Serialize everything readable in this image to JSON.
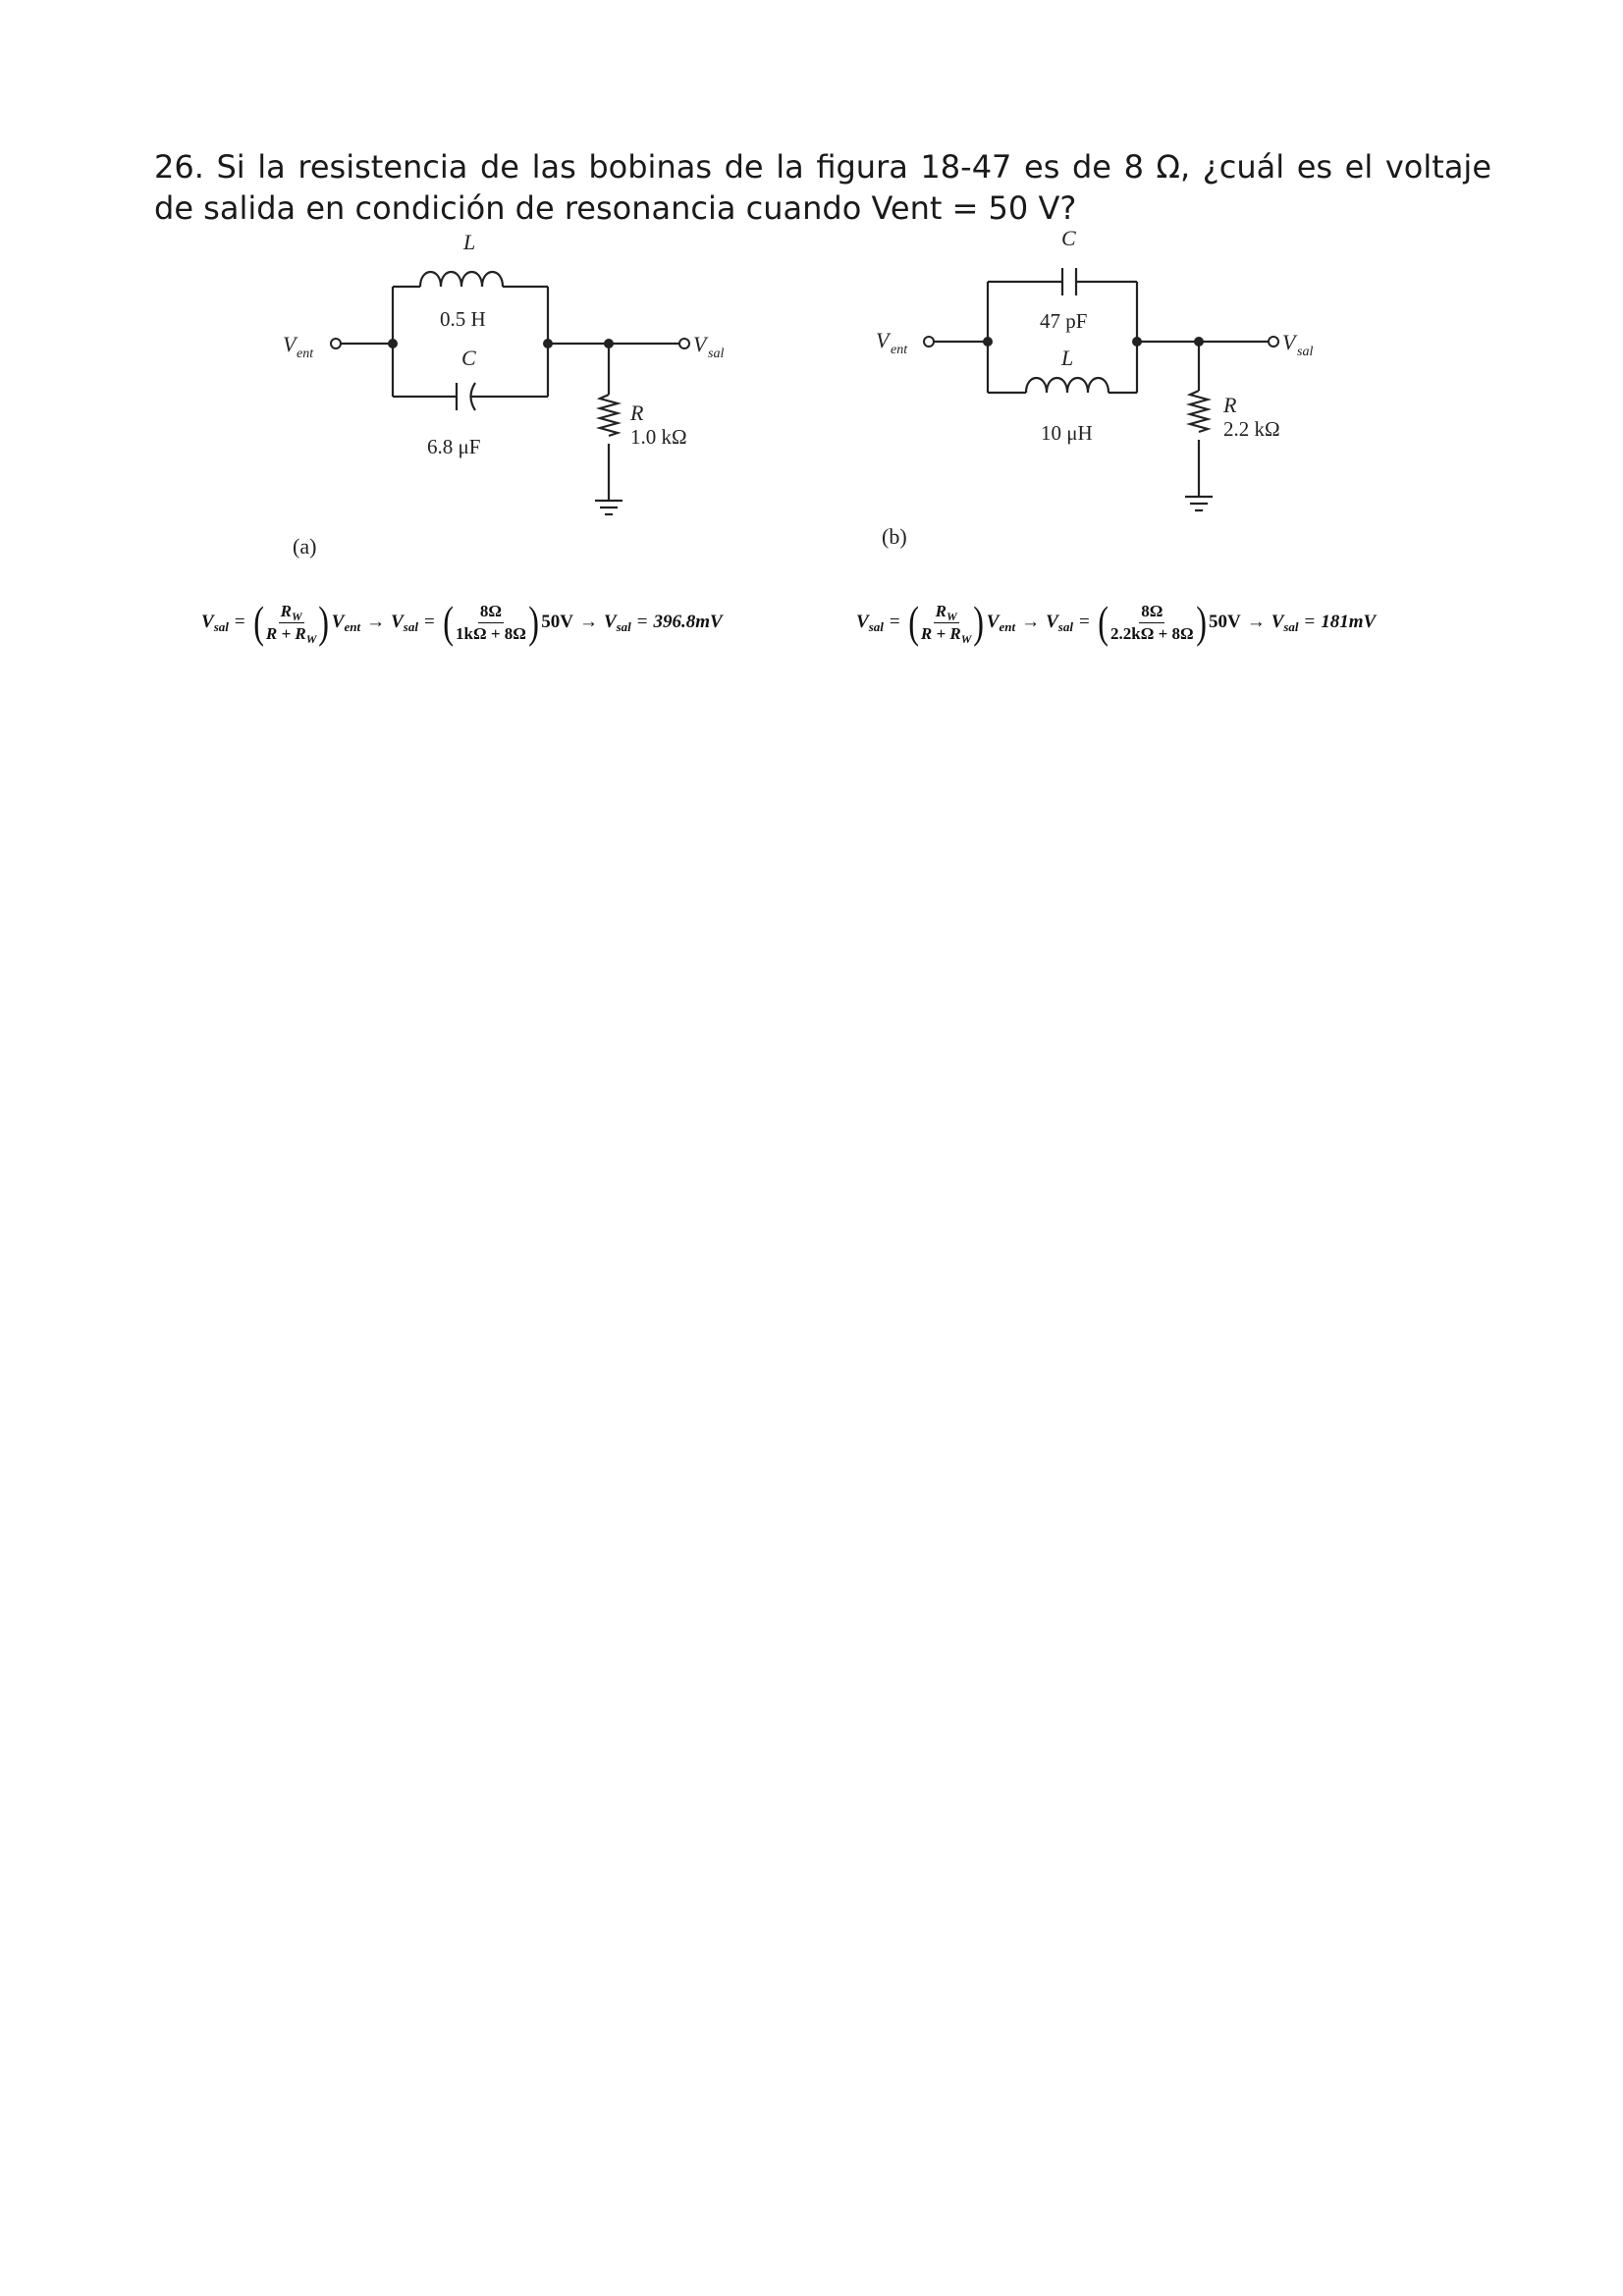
{
  "question": {
    "text": "26. Si la resistencia de las bobinas de la figura 18-47 es de 8 Ω, ¿cuál es el voltaje de salida en condición de resonancia cuando Vent = 50 V?"
  },
  "figure_a": {
    "input_label": "V",
    "input_sub": "ent",
    "output_label": "V",
    "output_sub": "sal",
    "inductor_name": "L",
    "inductor_value": "0.5 H",
    "capacitor_name": "C",
    "capacitor_value": "6.8 μF",
    "resistor_name": "R",
    "resistor_value": "1.0 kΩ",
    "caption": "(a)"
  },
  "figure_b": {
    "input_label": "V",
    "input_sub": "ent",
    "output_label": "V",
    "output_sub": "sal",
    "capacitor_name": "C",
    "capacitor_value": "47 pF",
    "inductor_name": "L",
    "inductor_value": "10 μH",
    "resistor_name": "R",
    "resistor_value": "2.2 kΩ",
    "caption": "(b)"
  },
  "formula_a": {
    "lhs_v": "V",
    "lhs_sub": "sal",
    "eq": "=",
    "frac1_num_v": "R",
    "frac1_num_sub": "W",
    "frac1_den": "R + R",
    "frac1_den_sub": "W",
    "vent_v": "V",
    "vent_sub": "ent",
    "arrow": "→",
    "frac2_num": "8Ω",
    "frac2_den": "1kΩ + 8Ω",
    "source": "50V",
    "result": "396.8mV"
  },
  "formula_b": {
    "lhs_v": "V",
    "lhs_sub": "sal",
    "eq": "=",
    "frac1_num_v": "R",
    "frac1_num_sub": "W",
    "frac1_den": "R + R",
    "frac1_den_sub": "W",
    "vent_v": "V",
    "vent_sub": "ent",
    "arrow": "→",
    "frac2_num": "8Ω",
    "frac2_den": "2.2kΩ + 8Ω",
    "source": "50V",
    "result": "181mV"
  }
}
